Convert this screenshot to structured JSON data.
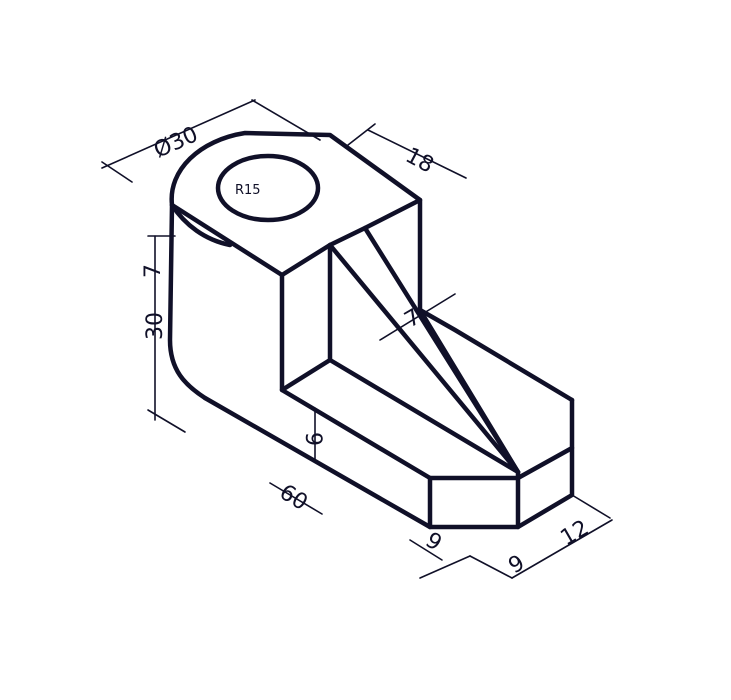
{
  "drawing": {
    "dimensions": {
      "hole_diameter": "Ø30",
      "hole_radius": "R15",
      "top_length": "18",
      "rib_thickness": "7",
      "side_7": "7",
      "height": "30",
      "rib_offset": "9",
      "base_length": "60",
      "front_9a": "9",
      "front_9b": "9",
      "depth": "12"
    }
  }
}
